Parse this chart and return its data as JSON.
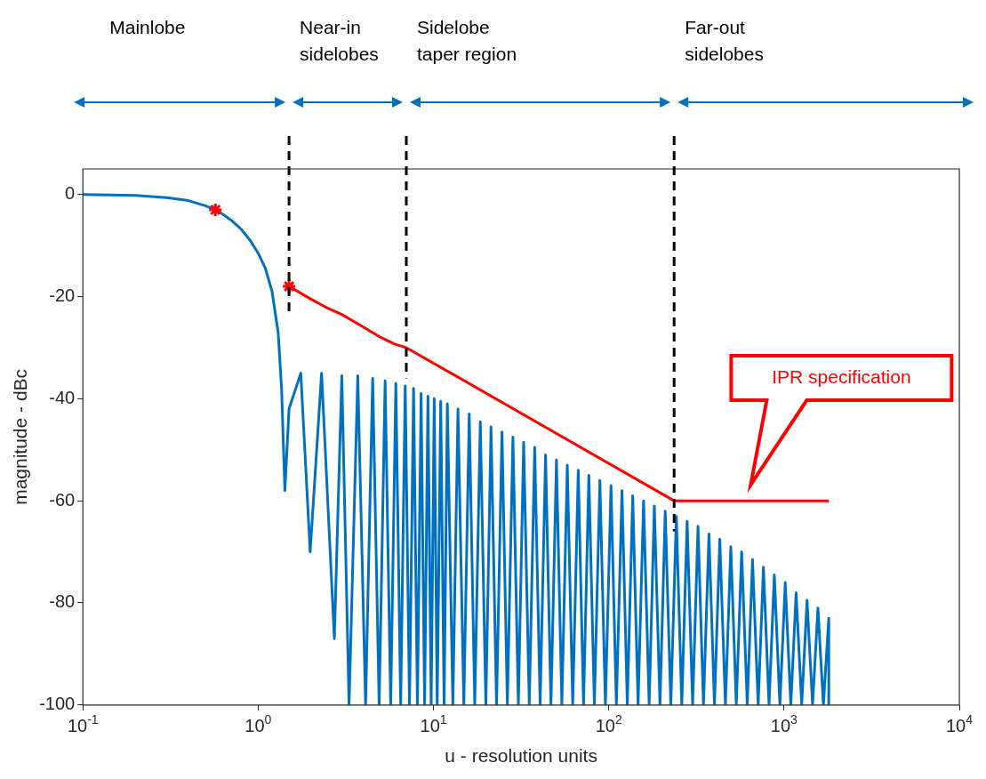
{
  "chart_data": {
    "type": "line",
    "xlabel": "u - resolution units",
    "ylabel": "magnitude - dBc",
    "log": "x",
    "grid": false,
    "legend": false,
    "xlim": [
      0.1,
      10000
    ],
    "xticks": [
      {
        "value": 0.1,
        "label": "10$^{-1}$"
      },
      {
        "value": 1,
        "label": "10$^{0}$"
      },
      {
        "value": 10,
        "label": "10$^{1}$"
      },
      {
        "value": 100,
        "label": "10$^{2}$"
      },
      {
        "value": 1000,
        "label": "10$^{3}$"
      },
      {
        "value": 10000,
        "label": "10$^{4}$"
      }
    ],
    "ylim": [
      -100,
      5
    ],
    "yticks": [
      -100,
      -80,
      -60,
      -40,
      -20,
      0
    ],
    "series": [
      {
        "type": "line",
        "color": "#0070c0",
        "marker": "none",
        "x": [
          0.1,
          0.2,
          0.3,
          0.4,
          0.5,
          0.6,
          0.7,
          0.8,
          0.9,
          1.0,
          1.1,
          1.2,
          1.3,
          1.36,
          1.42,
          1.5,
          1.75,
          1.98,
          2.3,
          2.72,
          3.0,
          3.3,
          3.7,
          4.1,
          4.5,
          4.9,
          5.3,
          5.7,
          6.1,
          6.5,
          6.9,
          7.3,
          7.7,
          8.1,
          8.5,
          8.9,
          9.3,
          9.7,
          10.1,
          10.5,
          11,
          11.5,
          12,
          12.9,
          13.8,
          14.9,
          16,
          17.2,
          18.5,
          19.9,
          21.3,
          22.9,
          24.6,
          26.4,
          28.4,
          30.5,
          32.7,
          35.2,
          37.8,
          40.6,
          43.6,
          46.8,
          50.3,
          54,
          58,
          62.3,
          67,
          71.8,
          77,
          82.8,
          89,
          95.7,
          103,
          110.5,
          119,
          127.6,
          137,
          147,
          158,
          170,
          182,
          196,
          210,
          226,
          243,
          261,
          280,
          301,
          323,
          347,
          373,
          401,
          430,
          463,
          497,
          534,
          573,
          617,
          661,
          712,
          763,
          821,
          880,
          947,
          1016,
          1093,
          1172,
          1261,
          1353,
          1455,
          1561,
          1677,
          1800,
          1800
        ],
        "values": [
          0,
          -0.2,
          -0.6,
          -1.2,
          -2.2,
          -3.4,
          -5,
          -6.8,
          -9,
          -11.5,
          -14.5,
          -19,
          -27,
          -38,
          -58,
          -42,
          -35,
          -70,
          -35,
          -87,
          -35.5,
          -100,
          -35.5,
          -100,
          -36,
          -100,
          -36.5,
          -100,
          -37,
          -100,
          -37.5,
          -100,
          -38,
          -100,
          -39,
          -100,
          -39.5,
          -100,
          -40,
          -100,
          -40.5,
          -100,
          -41,
          -100,
          -42,
          -100,
          -43,
          -100,
          -44.5,
          -100,
          -45.5,
          -100,
          -46.5,
          -100,
          -47.5,
          -100,
          -48.5,
          -100,
          -49.5,
          -100,
          -51,
          -100,
          -52,
          -100,
          -53,
          -100,
          -54,
          -100,
          -55,
          -100,
          -56,
          -100,
          -57,
          -100,
          -58,
          -100,
          -59,
          -100,
          -60,
          -100,
          -61,
          -100,
          -62,
          -100,
          -63,
          -100,
          -64,
          -100,
          -65,
          -100,
          -66.5,
          -100,
          -67.5,
          -100,
          -69,
          -100,
          -70,
          -100,
          -71.5,
          -100,
          -73,
          -100,
          -74.5,
          -100,
          -76,
          -100,
          -78,
          -100,
          -79.5,
          -100,
          -81,
          -100,
          -83,
          -100
        ]
      },
      {
        "type": "line",
        "color": "#ff0000",
        "marker": "none",
        "x": [
          1.5,
          2,
          2.5,
          3,
          4,
          5,
          6,
          7,
          236,
          1800
        ],
        "values": [
          -18,
          -20.5,
          -22.3,
          -23.5,
          -26,
          -28,
          -29.3,
          -30,
          -60,
          -60
        ]
      },
      {
        "type": "scatter",
        "color": "#ff0000",
        "marker": "cross",
        "x": [
          0.57,
          1.5
        ],
        "values": [
          -3,
          -18
        ]
      }
    ],
    "ref_lines": [
      {
        "axis": "x",
        "value": 1.5,
        "color": "#000000",
        "line_style": "dashed"
      },
      {
        "axis": "x",
        "value": 7,
        "color": "#000000",
        "line_style": "dashed"
      },
      {
        "axis": "x",
        "value": 236,
        "color": "#000000",
        "line_style": "dashed"
      }
    ],
    "annotations": [
      "Mainlobe",
      "Near-in sidelobes",
      "Sidelobe taper region",
      "Far-out sidelobes",
      "IPR specification"
    ]
  }
}
